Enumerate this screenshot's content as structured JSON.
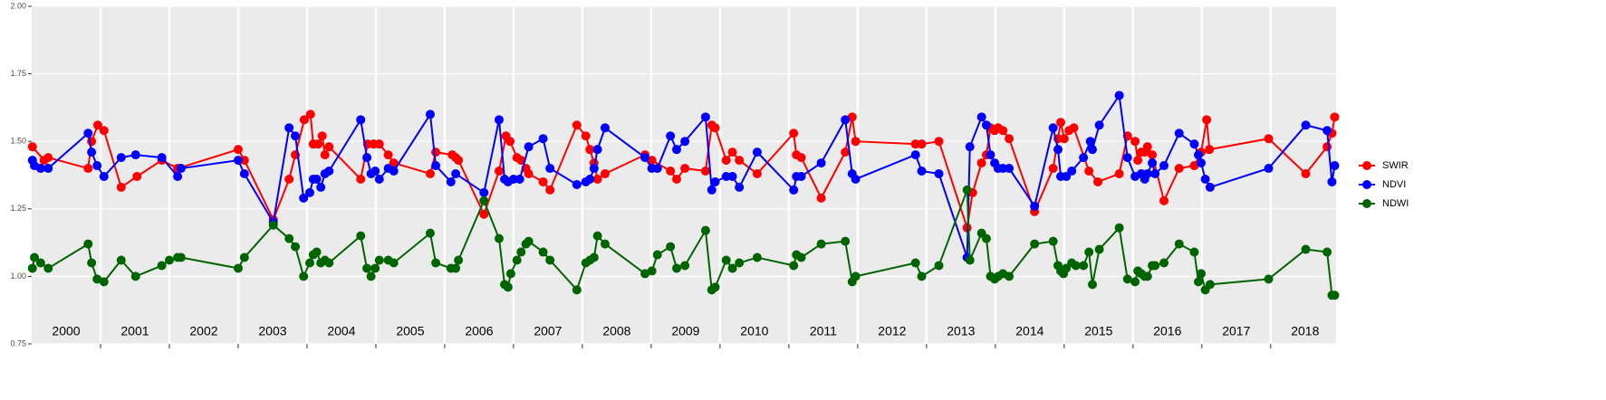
{
  "chart_data": {
    "type": "line",
    "xlim": [
      2000,
      2018.95
    ],
    "xticks": [
      2001,
      2002,
      2003,
      2004,
      2005,
      2006,
      2007,
      2008,
      2009,
      2010,
      2011,
      2012,
      2013,
      2014,
      2015,
      2016,
      2017,
      2018
    ],
    "year_labels": [
      2000,
      2001,
      2002,
      2003,
      2004,
      2005,
      2006,
      2007,
      2008,
      2009,
      2010,
      2011,
      2012,
      2013,
      2014,
      2015,
      2016,
      2017,
      2018
    ],
    "ylim": [
      0.75,
      2.0
    ],
    "yticks": [
      {
        "value": 0.75,
        "label": "0.75"
      },
      {
        "value": 1.0,
        "label": "1.00"
      },
      {
        "value": 1.25,
        "label": "1.25"
      },
      {
        "value": 1.5,
        "label": "1.50"
      },
      {
        "value": 1.75,
        "label": "1.75"
      },
      {
        "value": 2.0,
        "label": "2.00"
      }
    ],
    "grid": true,
    "legend": "right",
    "series": [
      {
        "name": "SWIR",
        "color": "#ff0000",
        "x": [
          2000.01,
          2000.18,
          2000.24,
          2000.82,
          2000.87,
          2000.96,
          2001.05,
          2001.3,
          2001.53,
          2001.89,
          2002.12,
          2003.0,
          2003.09,
          2003.51,
          2003.74,
          2003.83,
          2003.96,
          2004.05,
          2004.09,
          2004.16,
          2004.22,
          2004.26,
          2004.32,
          2004.78,
          2004.88,
          2004.97,
          2005.05,
          2005.18,
          2005.26,
          2005.79,
          2005.87,
          2006.11,
          2006.16,
          2006.2,
          2006.57,
          2006.79,
          2006.89,
          2006.95,
          2007.05,
          2007.11,
          2007.18,
          2007.22,
          2007.43,
          2007.53,
          2007.92,
          2008.05,
          2008.11,
          2008.17,
          2008.22,
          2008.33,
          2008.91,
          2009.01,
          2009.28,
          2009.37,
          2009.49,
          2009.79,
          2009.88,
          2009.93,
          2010.09,
          2010.18,
          2010.28,
          2010.54,
          2011.07,
          2011.11,
          2011.18,
          2011.47,
          2011.82,
          2011.92,
          2011.97,
          2012.84,
          2012.93,
          2013.18,
          2013.59,
          2013.67,
          2013.8,
          2013.87,
          2013.93,
          2013.99,
          2014.04,
          2014.11,
          2014.2,
          2014.57,
          2014.84,
          2014.91,
          2014.95,
          2015.0,
          2015.07,
          2015.14,
          2015.36,
          2015.49,
          2015.8,
          2015.92,
          2016.03,
          2016.07,
          2016.12,
          2016.17,
          2016.21,
          2016.28,
          2016.45,
          2016.67,
          2016.89,
          2016.99,
          2017.07,
          2017.11,
          2017.97,
          2018.51,
          2018.82,
          2018.89,
          2018.93
        ],
        "values": [
          1.48,
          1.43,
          1.44,
          1.4,
          1.5,
          1.56,
          1.54,
          1.33,
          1.37,
          1.43,
          1.4,
          1.47,
          1.43,
          1.21,
          1.36,
          1.45,
          1.58,
          1.6,
          1.49,
          1.49,
          1.52,
          1.45,
          1.48,
          1.36,
          1.49,
          1.49,
          1.49,
          1.45,
          1.42,
          1.38,
          1.46,
          1.45,
          1.44,
          1.43,
          1.23,
          1.39,
          1.52,
          1.5,
          1.44,
          1.43,
          1.4,
          1.38,
          1.35,
          1.32,
          1.56,
          1.52,
          1.47,
          1.42,
          1.36,
          1.38,
          1.45,
          1.43,
          1.39,
          1.36,
          1.4,
          1.39,
          1.56,
          1.55,
          1.43,
          1.46,
          1.43,
          1.38,
          1.53,
          1.45,
          1.44,
          1.29,
          1.46,
          1.59,
          1.5,
          1.49,
          1.49,
          1.5,
          1.18,
          1.31,
          1.42,
          1.45,
          1.55,
          1.54,
          1.55,
          1.54,
          1.51,
          1.24,
          1.4,
          1.51,
          1.57,
          1.51,
          1.54,
          1.55,
          1.39,
          1.35,
          1.38,
          1.52,
          1.5,
          1.43,
          1.46,
          1.46,
          1.48,
          1.45,
          1.28,
          1.4,
          1.41,
          1.46,
          1.58,
          1.47,
          1.51,
          1.38,
          1.48,
          1.53,
          1.59
        ]
      },
      {
        "name": "NDVI",
        "color": "#0000ff",
        "x": [
          2000.01,
          2000.04,
          2000.13,
          2000.24,
          2000.82,
          2000.87,
          2000.95,
          2001.05,
          2001.3,
          2001.51,
          2001.89,
          2002.12,
          2002.17,
          2003.0,
          2003.09,
          2003.51,
          2003.74,
          2003.83,
          2003.95,
          2004.04,
          2004.09,
          2004.14,
          2004.2,
          2004.26,
          2004.32,
          2004.78,
          2004.87,
          2004.93,
          2004.99,
          2005.05,
          2005.18,
          2005.26,
          2005.79,
          2005.87,
          2006.09,
          2006.16,
          2006.57,
          2006.79,
          2006.87,
          2006.92,
          2007.0,
          2007.09,
          2007.22,
          2007.43,
          2007.53,
          2007.92,
          2008.05,
          2008.11,
          2008.17,
          2008.22,
          2008.33,
          2008.91,
          2009.01,
          2009.09,
          2009.28,
          2009.37,
          2009.49,
          2009.79,
          2009.88,
          2009.93,
          2010.09,
          2010.18,
          2010.28,
          2010.54,
          2011.07,
          2011.11,
          2011.18,
          2011.47,
          2011.82,
          2011.92,
          2011.97,
          2012.84,
          2012.93,
          2013.18,
          2013.59,
          2013.63,
          2013.8,
          2013.87,
          2013.93,
          2013.99,
          2014.04,
          2014.11,
          2014.2,
          2014.57,
          2014.84,
          2014.91,
          2014.95,
          2015.03,
          2015.11,
          2015.28,
          2015.38,
          2015.41,
          2015.51,
          2015.8,
          2015.92,
          2016.03,
          2016.12,
          2016.17,
          2016.21,
          2016.28,
          2016.32,
          2016.45,
          2016.67,
          2016.89,
          2016.95,
          2016.99,
          2017.05,
          2017.12,
          2017.97,
          2018.51,
          2018.82,
          2018.89,
          2018.93
        ],
        "values": [
          1.43,
          1.41,
          1.4,
          1.4,
          1.53,
          1.46,
          1.41,
          1.37,
          1.44,
          1.45,
          1.44,
          1.37,
          1.4,
          1.43,
          1.38,
          1.2,
          1.55,
          1.52,
          1.29,
          1.31,
          1.36,
          1.36,
          1.33,
          1.38,
          1.39,
          1.58,
          1.44,
          1.38,
          1.39,
          1.36,
          1.4,
          1.39,
          1.6,
          1.41,
          1.35,
          1.38,
          1.31,
          1.58,
          1.36,
          1.35,
          1.36,
          1.36,
          1.48,
          1.51,
          1.4,
          1.34,
          1.35,
          1.36,
          1.4,
          1.47,
          1.55,
          1.44,
          1.4,
          1.4,
          1.52,
          1.47,
          1.5,
          1.59,
          1.32,
          1.35,
          1.37,
          1.37,
          1.33,
          1.46,
          1.32,
          1.37,
          1.37,
          1.42,
          1.58,
          1.38,
          1.36,
          1.45,
          1.39,
          1.38,
          1.07,
          1.48,
          1.59,
          1.56,
          1.45,
          1.42,
          1.4,
          1.4,
          1.4,
          1.26,
          1.55,
          1.47,
          1.37,
          1.37,
          1.39,
          1.44,
          1.5,
          1.47,
          1.56,
          1.67,
          1.44,
          1.37,
          1.38,
          1.36,
          1.38,
          1.42,
          1.38,
          1.41,
          1.53,
          1.49,
          1.45,
          1.42,
          1.36,
          1.33,
          1.4,
          1.56,
          1.54,
          1.35,
          1.41
        ]
      },
      {
        "name": "NDWI",
        "color": "#006400",
        "x": [
          2000.01,
          2000.04,
          2000.13,
          2000.24,
          2000.82,
          2000.87,
          2000.95,
          2001.05,
          2001.3,
          2001.51,
          2001.89,
          2002.0,
          2002.12,
          2002.17,
          2003.0,
          2003.09,
          2003.51,
          2003.74,
          2003.83,
          2003.95,
          2004.04,
          2004.09,
          2004.14,
          2004.2,
          2004.26,
          2004.32,
          2004.78,
          2004.87,
          2004.93,
          2004.99,
          2005.05,
          2005.18,
          2005.26,
          2005.79,
          2005.87,
          2006.09,
          2006.16,
          2006.2,
          2006.57,
          2006.79,
          2006.87,
          2006.92,
          2006.96,
          2007.05,
          2007.11,
          2007.18,
          2007.22,
          2007.43,
          2007.53,
          2007.92,
          2008.05,
          2008.11,
          2008.17,
          2008.22,
          2008.33,
          2008.91,
          2009.01,
          2009.09,
          2009.28,
          2009.37,
          2009.49,
          2009.79,
          2009.88,
          2009.93,
          2010.09,
          2010.18,
          2010.28,
          2010.54,
          2011.07,
          2011.11,
          2011.18,
          2011.47,
          2011.82,
          2011.92,
          2011.97,
          2012.84,
          2012.93,
          2013.18,
          2013.59,
          2013.63,
          2013.8,
          2013.87,
          2013.93,
          2013.99,
          2014.04,
          2014.11,
          2014.2,
          2014.57,
          2014.84,
          2014.91,
          2014.95,
          2014.99,
          2015.03,
          2015.11,
          2015.17,
          2015.28,
          2015.36,
          2015.41,
          2015.51,
          2015.8,
          2015.92,
          2016.03,
          2016.07,
          2016.12,
          2016.17,
          2016.21,
          2016.28,
          2016.32,
          2016.45,
          2016.67,
          2016.89,
          2016.95,
          2016.99,
          2017.05,
          2017.12,
          2017.97,
          2018.51,
          2018.82,
          2018.89,
          2018.93
        ],
        "values": [
          1.03,
          1.07,
          1.05,
          1.03,
          1.12,
          1.05,
          0.99,
          0.98,
          1.06,
          1.0,
          1.04,
          1.06,
          1.07,
          1.07,
          1.03,
          1.07,
          1.19,
          1.14,
          1.11,
          1.0,
          1.05,
          1.08,
          1.09,
          1.05,
          1.06,
          1.05,
          1.15,
          1.03,
          1.0,
          1.03,
          1.06,
          1.06,
          1.05,
          1.16,
          1.05,
          1.03,
          1.03,
          1.06,
          1.28,
          1.14,
          0.97,
          0.96,
          1.01,
          1.06,
          1.09,
          1.12,
          1.13,
          1.09,
          1.06,
          0.95,
          1.05,
          1.06,
          1.07,
          1.15,
          1.12,
          1.01,
          1.02,
          1.08,
          1.11,
          1.03,
          1.04,
          1.17,
          0.95,
          0.96,
          1.06,
          1.03,
          1.05,
          1.07,
          1.04,
          1.08,
          1.07,
          1.12,
          1.13,
          0.98,
          1.0,
          1.05,
          1.0,
          1.04,
          1.32,
          1.06,
          1.16,
          1.14,
          1.0,
          0.99,
          1.0,
          1.01,
          1.0,
          1.12,
          1.13,
          1.04,
          1.02,
          1.01,
          1.03,
          1.05,
          1.04,
          1.04,
          1.09,
          0.97,
          1.1,
          1.18,
          0.99,
          0.98,
          1.02,
          1.01,
          1.0,
          1.0,
          1.04,
          1.04,
          1.05,
          1.12,
          1.09,
          0.98,
          1.01,
          0.95,
          0.97,
          0.99,
          1.1,
          1.09,
          0.93,
          0.93
        ]
      }
    ]
  }
}
